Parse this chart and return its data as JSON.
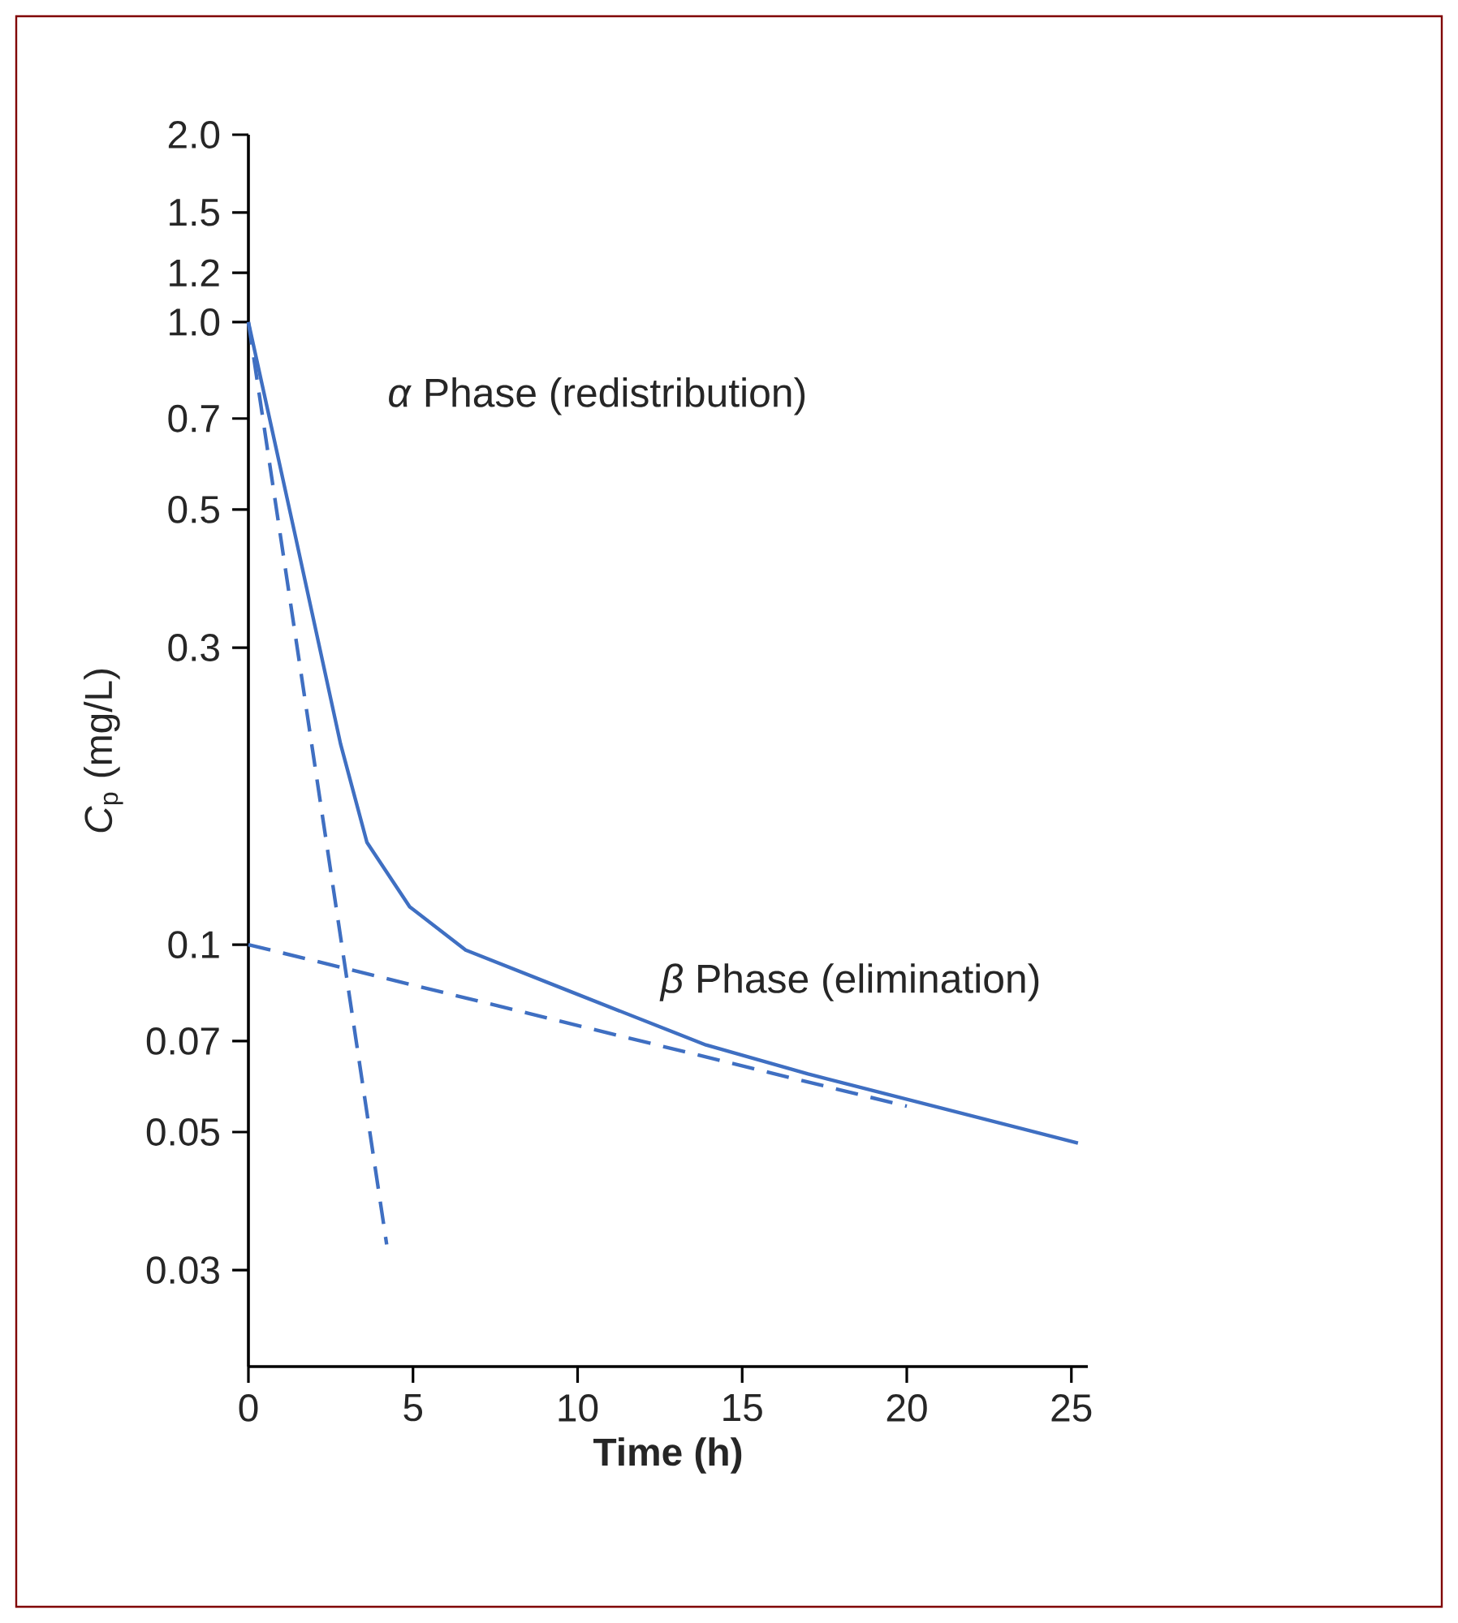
{
  "chart_data": {
    "type": "line",
    "xlabel": "Time (h)",
    "ylabel": "*C*$_{p}$ (mg/L)",
    "log": "y",
    "xlim": [
      0,
      25.5
    ],
    "ylim": [
      0.021,
      2.0
    ],
    "xticks": [
      0,
      5,
      10,
      15,
      20,
      25
    ],
    "yticks": [
      0.03,
      0.05,
      0.07,
      0.1,
      0.3,
      0.5,
      0.7,
      {
        "value": 1.0,
        "label": "1.0"
      },
      1.2,
      1.5,
      {
        "value": 2.0,
        "label": "2.0"
      }
    ],
    "annotations": [
      "*α* Phase (redistribution)",
      "*β* Phase (elimination)"
    ],
    "series": [
      {
        "color": "#3f6fc2",
        "line_style": "solid",
        "x": [
          0,
          1.4,
          2.8,
          3.6,
          4.9,
          6.6,
          9.8,
          13.9,
          17,
          25.2
        ],
        "values": [
          1.0,
          0.46,
          0.21,
          0.146,
          0.115,
          0.098,
          0.084,
          0.069,
          0.062,
          0.048
        ]
      },
      {
        "color": "#3f6fc2",
        "line_style": "dashed",
        "x": [
          0,
          4.2
        ],
        "values": [
          1.0,
          0.033
        ]
      },
      {
        "color": "#3f6fc2",
        "line_style": "dashed",
        "x": [
          0,
          20
        ],
        "values": [
          0.1,
          0.055
        ]
      }
    ]
  }
}
